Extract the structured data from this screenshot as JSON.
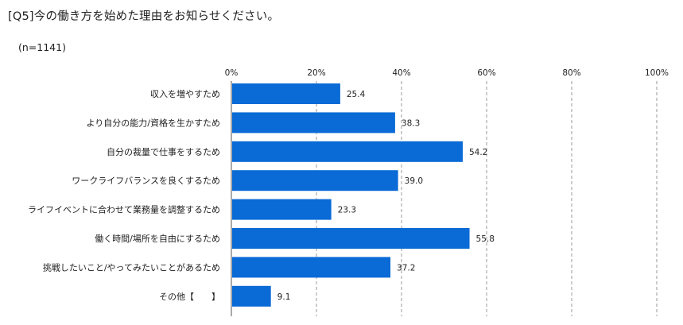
{
  "title": "[Q5]今の働き方を始めた理由をお知らせください。",
  "sample": "(n=1141)",
  "chart_data": {
    "type": "bar",
    "orientation": "horizontal",
    "categories": [
      "収入を増やすため",
      "より自分の能力/資格を生かすため",
      "自分の裁量で仕事をするため",
      "ワークライフバランスを良くするため",
      "ライフイベントに合わせて業務量を調整するため",
      "働く時間/場所を自由にするため",
      "挑戦したいこと/やってみたいことがあるため",
      "その他【　　】"
    ],
    "values": [
      25.4,
      38.3,
      54.2,
      39.0,
      23.3,
      55.8,
      37.2,
      9.1
    ],
    "value_labels": [
      "25.4",
      "38.3",
      "54.2",
      "39.0",
      "23.3",
      "55.8",
      "37.2",
      "9.1"
    ],
    "xlim": [
      0,
      100
    ],
    "x_ticks": [
      "0%",
      "20%",
      "40%",
      "60%",
      "80%",
      "100%"
    ],
    "grid": "dashed vertical",
    "bar_color": "#0a6ad6"
  }
}
